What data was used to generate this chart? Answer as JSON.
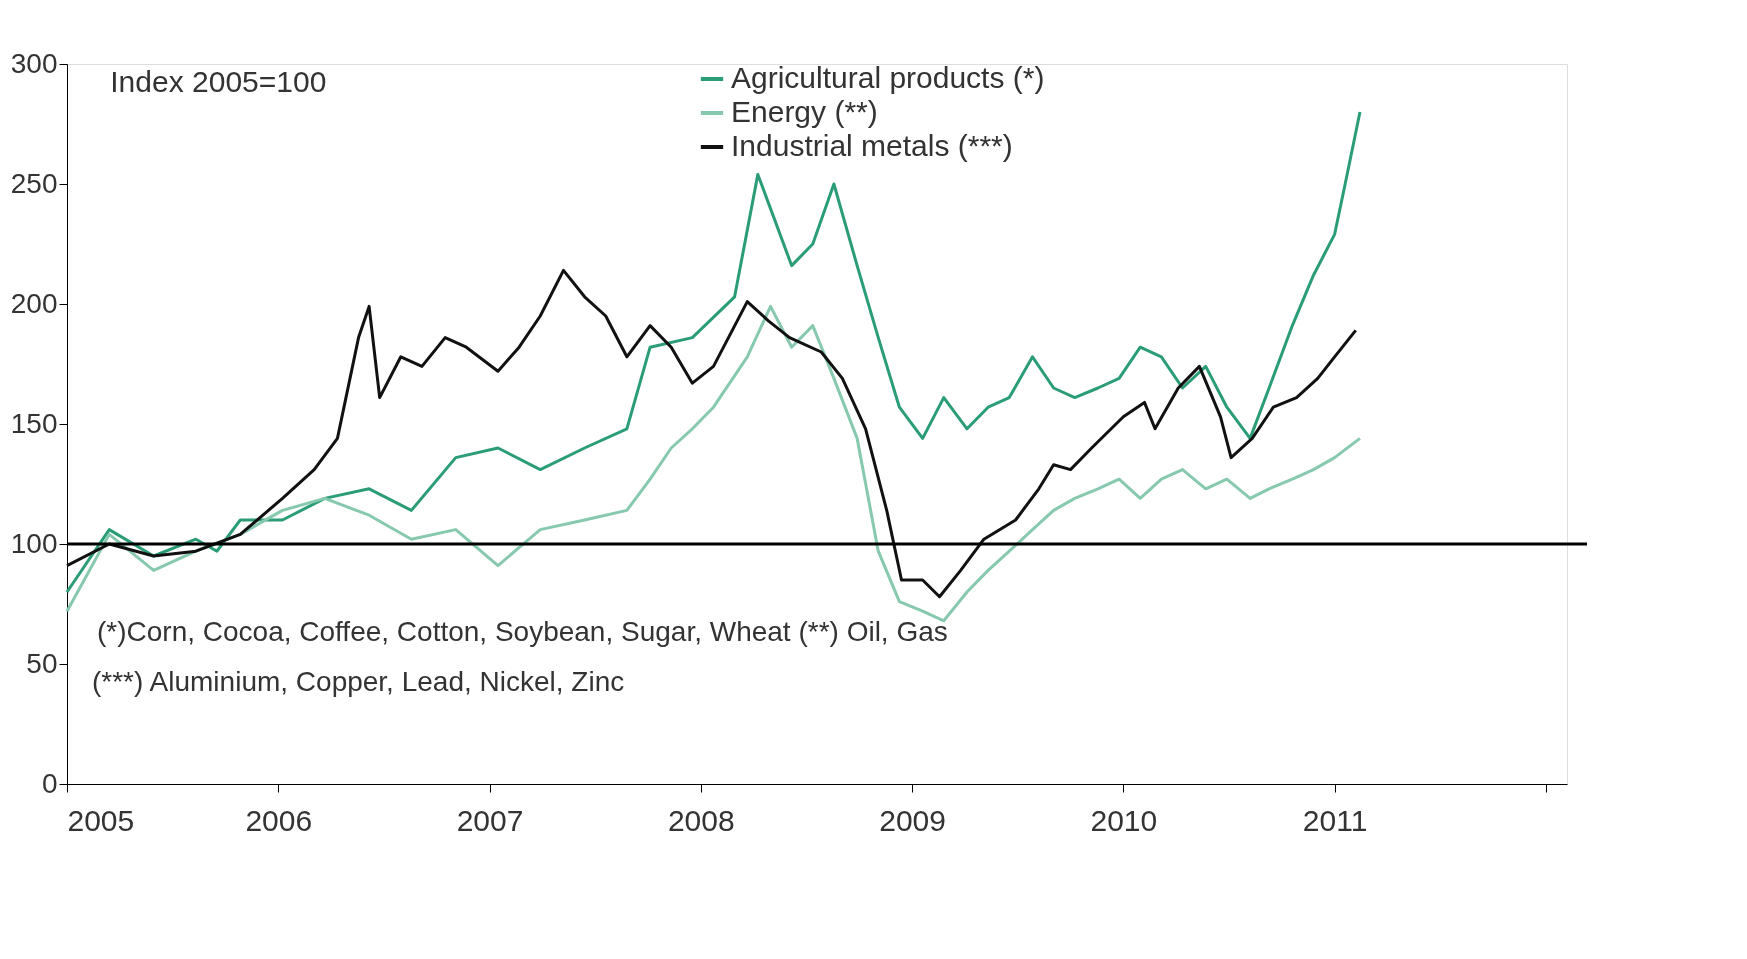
{
  "chart_data": {
    "type": "line",
    "title": "Index 2005=100",
    "xlim": [
      2005,
      2012.1
    ],
    "xticks": [
      2005,
      2006,
      2007,
      2008,
      2009,
      2010,
      2011,
      {
        "value": 2012,
        "label": null
      }
    ],
    "ylim": [
      0,
      300
    ],
    "yticks": [
      0,
      50,
      100,
      150,
      200,
      250,
      300
    ],
    "grid": false,
    "legend": "top",
    "marker": "none",
    "line_style": "solid",
    "ref_lines": [
      {
        "axis": "y",
        "value": 100,
        "label": null,
        "color": "#000000"
      }
    ],
    "annotations": [
      "(*)Corn, Cocoa, Coffee, Cotton, Soybean, Sugar, Wheat (**) Oil, Gas",
      "(***) Aluminium, Copper, Lead, Nickel, Zinc"
    ],
    "series": [
      {
        "name": "Agricultural products (*)",
        "color": "#2a9d78",
        "x": [
          2005,
          2005.2,
          2005.41,
          2005.61,
          2005.71,
          2005.82,
          2006.02,
          2006.22,
          2006.43,
          2006.63,
          2006.84,
          2007.04,
          2007.24,
          2007.45,
          2007.65,
          2007.76,
          2007.96,
          2008.16,
          2008.27,
          2008.43,
          2008.53,
          2008.63,
          2008.74,
          2008.84,
          2008.94,
          2009.05,
          2009.15,
          2009.26,
          2009.36,
          2009.46,
          2009.57,
          2009.67,
          2009.77,
          2009.88,
          2009.98,
          2010.08,
          2010.18,
          2010.28,
          2010.39,
          2010.49,
          2010.6,
          2010.69,
          2010.8,
          2010.9,
          2011.0,
          2011.05,
          2011.12
        ],
        "values": [
          80,
          106,
          95,
          102,
          97,
          110,
          110,
          119,
          123,
          114,
          136,
          140,
          131,
          140,
          148,
          182,
          186,
          203,
          254,
          216,
          225,
          250,
          216,
          186,
          157,
          144,
          161,
          148,
          157,
          161,
          178,
          165,
          161,
          165,
          169,
          182,
          178,
          165,
          174,
          157,
          144,
          165,
          191,
          212,
          229,
          250,
          280
        ]
      },
      {
        "name": "Energy (**)",
        "color": "#86c9ae",
        "x": [
          2005,
          2005.2,
          2005.41,
          2005.61,
          2005.82,
          2006.02,
          2006.22,
          2006.43,
          2006.63,
          2006.84,
          2007.04,
          2007.24,
          2007.45,
          2007.65,
          2007.76,
          2007.86,
          2007.96,
          2008.06,
          2008.22,
          2008.33,
          2008.43,
          2008.53,
          2008.63,
          2008.74,
          2008.84,
          2008.94,
          2009.05,
          2009.15,
          2009.26,
          2009.36,
          2009.46,
          2009.57,
          2009.67,
          2009.77,
          2009.88,
          2009.98,
          2010.08,
          2010.18,
          2010.28,
          2010.39,
          2010.49,
          2010.6,
          2010.69,
          2010.8,
          2010.9,
          2011.0,
          2011.12
        ],
        "values": [
          72,
          104,
          89,
          97,
          104,
          114,
          119,
          112,
          102,
          106,
          91,
          106,
          110,
          114,
          127,
          140,
          148,
          157,
          178,
          199,
          182,
          191,
          169,
          144,
          97,
          76,
          72,
          68,
          80,
          89,
          97,
          106,
          114,
          119,
          123,
          127,
          119,
          127,
          131,
          123,
          127,
          119,
          123,
          127,
          131,
          136,
          144
        ]
      },
      {
        "name": "Industrial metals (***)",
        "color": "#111111",
        "x": [
          2005,
          2005.2,
          2005.41,
          2005.61,
          2005.82,
          2006.02,
          2006.17,
          2006.28,
          2006.38,
          2006.43,
          2006.48,
          2006.58,
          2006.68,
          2006.79,
          2006.89,
          2007.04,
          2007.14,
          2007.24,
          2007.35,
          2007.45,
          2007.55,
          2007.65,
          2007.76,
          2007.86,
          2007.96,
          2008.06,
          2008.22,
          2008.32,
          2008.42,
          2008.57,
          2008.67,
          2008.78,
          2008.88,
          2008.95,
          2009.05,
          2009.13,
          2009.23,
          2009.34,
          2009.49,
          2009.6,
          2009.67,
          2009.75,
          2009.85,
          2010.0,
          2010.1,
          2010.15,
          2010.26,
          2010.36,
          2010.46,
          2010.51,
          2010.61,
          2010.71,
          2010.82,
          2010.92,
          2011.0,
          2011.1
        ],
        "values": [
          91,
          100,
          95,
          97,
          104,
          119,
          131,
          144,
          186,
          199,
          161,
          178,
          174,
          186,
          182,
          172,
          182,
          195,
          214,
          203,
          195,
          178,
          191,
          182,
          167,
          174,
          201,
          193,
          186,
          180,
          169,
          148,
          114,
          85,
          85,
          78,
          89,
          102,
          110,
          123,
          133,
          131,
          140,
          153,
          159,
          148,
          165,
          174,
          153,
          136,
          144,
          157,
          161,
          169,
          178,
          189
        ]
      }
    ]
  }
}
